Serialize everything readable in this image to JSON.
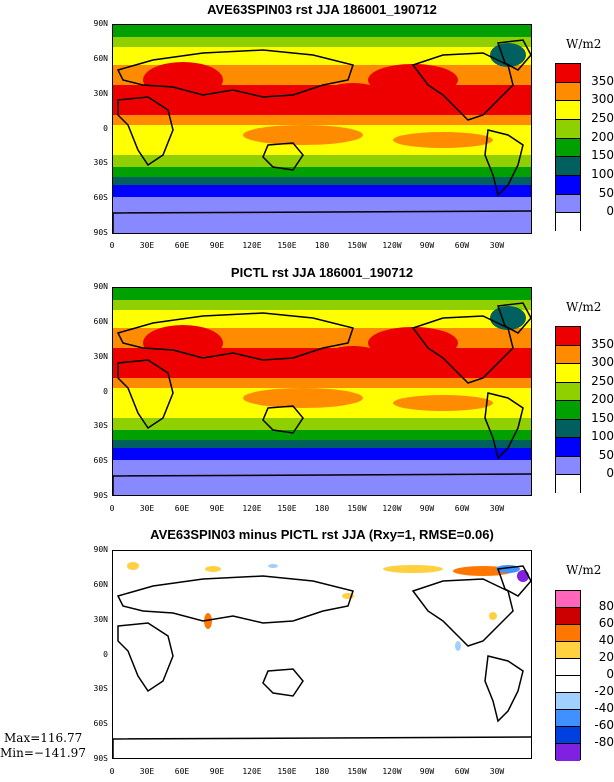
{
  "panels": [
    {
      "title": "AVE63SPIN03 rst JJA 186001_190712",
      "units": "W/m2",
      "legend": [
        "350",
        "300",
        "250",
        "200",
        "150",
        "100",
        "50",
        "0"
      ],
      "colors": [
        "#ee0000",
        "#ff8c00",
        "#ffff00",
        "#90d000",
        "#00a000",
        "#006060",
        "#0000ff",
        "#8888ff",
        "#ffffff"
      ]
    },
    {
      "title": "PICTL rst JJA 186001_190712",
      "units": "W/m2",
      "legend": [
        "350",
        "300",
        "250",
        "200",
        "150",
        "100",
        "50",
        "0"
      ],
      "colors": [
        "#ee0000",
        "#ff8c00",
        "#ffff00",
        "#90d000",
        "#00a000",
        "#006060",
        "#0000ff",
        "#8888ff",
        "#ffffff"
      ]
    },
    {
      "title": "AVE63SPIN03 minus PICTL rst JJA (Rxy=1, RMSE=0.06)",
      "units": "W/m2",
      "legend": [
        "80",
        "60",
        "40",
        "20",
        "0",
        "-20",
        "-40",
        "-60",
        "-80"
      ],
      "colors": [
        "#ff66bb",
        "#cc0000",
        "#ff7700",
        "#ffd040",
        "#ffffff",
        "#ffffff",
        "#a0d0ff",
        "#4090ff",
        "#0040e0",
        "#8020e0"
      ]
    }
  ],
  "lat_labels": [
    "90N",
    "60N",
    "30N",
    "0",
    "30S",
    "60S",
    "90S"
  ],
  "lon_labels": [
    "0",
    "30E",
    "60E",
    "90E",
    "120E",
    "150E",
    "180",
    "150W",
    "120W",
    "90W",
    "60W",
    "30W"
  ],
  "stats": {
    "max": "Max=116.77",
    "min": "Min=−141.97"
  }
}
